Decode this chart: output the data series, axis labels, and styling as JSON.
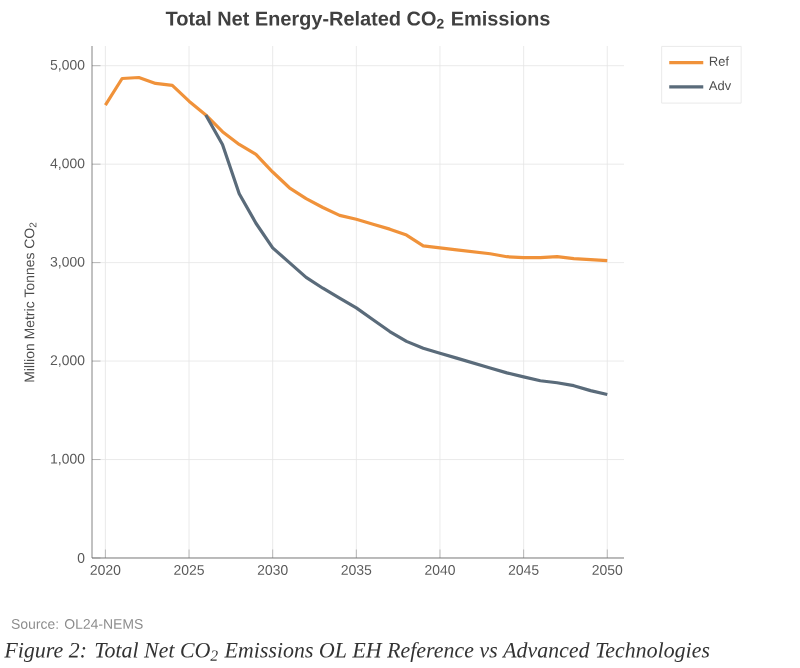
{
  "chart_data": {
    "type": "line",
    "title": "Total Net Energy-Related CO$_{2}$ Emissions",
    "ylabel": "Million Metric Tonnes CO$_{2}$",
    "annotations": [
      "Source: OL24-NEMS",
      "Figure 2: Total Net CO$_{2}$ Emissions OL EH Reference vs Advanced Technologies"
    ],
    "x": [
      2020,
      2021,
      2022,
      2023,
      2024,
      2025,
      2026,
      2027,
      2028,
      2029,
      2030,
      2031,
      2032,
      2033,
      2034,
      2035,
      2036,
      2037,
      2038,
      2039,
      2040,
      2041,
      2042,
      2043,
      2044,
      2045,
      2046,
      2047,
      2048,
      2049,
      2050
    ],
    "series": [
      {
        "name": "Ref",
        "color": "#f0923a",
        "values": [
          4600,
          4870,
          4880,
          4820,
          4800,
          4640,
          4500,
          4330,
          4200,
          4100,
          3920,
          3760,
          3650,
          3560,
          3480,
          3440,
          3390,
          3340,
          3280,
          3170,
          3150,
          3130,
          3110,
          3090,
          3060,
          3050,
          3050,
          3060,
          3040,
          3030,
          3020
        ]
      },
      {
        "name": "Adv",
        "color": "#5a6b7a",
        "values": [
          null,
          null,
          null,
          null,
          null,
          null,
          4500,
          4200,
          3700,
          3400,
          3150,
          3000,
          2850,
          2740,
          2640,
          2540,
          2420,
          2300,
          2200,
          2130,
          2080,
          2030,
          1980,
          1930,
          1880,
          1840,
          1800,
          1780,
          1750,
          1700,
          1660
        ]
      }
    ],
    "xlim": [
      2019.2,
      2051
    ],
    "ylim": [
      0,
      5200
    ],
    "xticks": [
      2020,
      2025,
      2030,
      2035,
      2040,
      2045,
      2050
    ],
    "yticks": [
      0,
      {
        "value": 1000,
        "label": "1,000"
      },
      {
        "value": 2000,
        "label": "2,000"
      },
      {
        "value": 3000,
        "label": "3,000"
      },
      {
        "value": 4000,
        "label": "4,000"
      },
      {
        "value": 5000,
        "label": "5,000"
      }
    ],
    "grid": true,
    "legend": "top right"
  }
}
